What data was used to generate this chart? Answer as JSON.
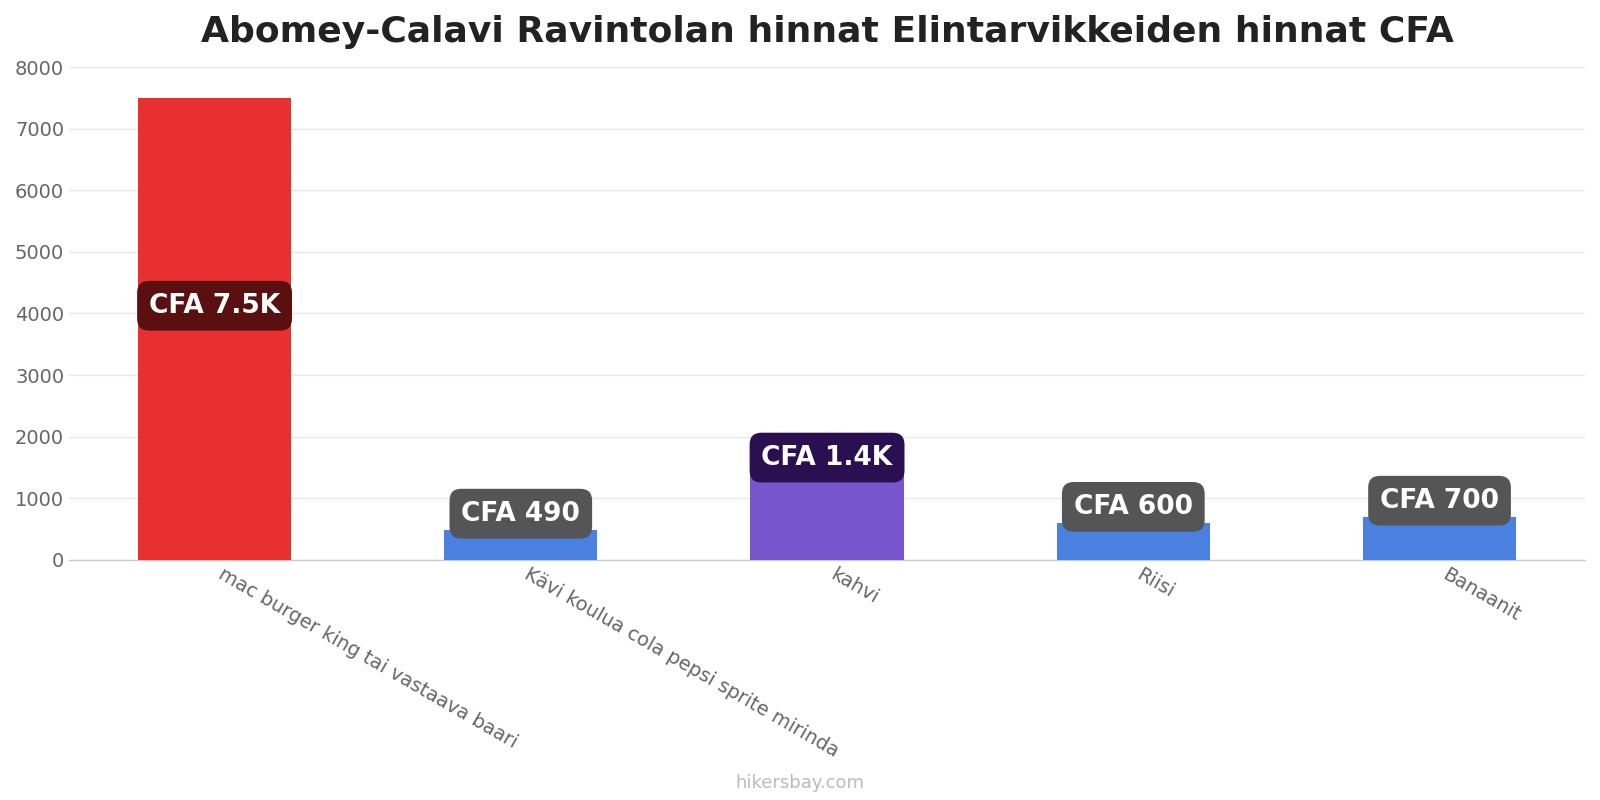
{
  "title": "Abomey-Calavi Ravintolan hinnat Elintarvikkeiden hinnat CFA",
  "categories": [
    "mac burger king tai vastaava baari",
    "Kävi koulua cola pepsi sprite mirinda",
    "kahvi",
    "Riisi",
    "Banaanit"
  ],
  "values": [
    7500,
    490,
    1400,
    600,
    700
  ],
  "bar_colors": [
    "#e83030",
    "#4a80e0",
    "#7755cc",
    "#4a80e0",
    "#4a80e0"
  ],
  "label_texts": [
    "CFA 7.5K",
    "CFA 490",
    "CFA 1.4K",
    "CFA 600",
    "CFA 700"
  ],
  "label_bg_colors": [
    "#5a1010",
    "#555555",
    "#2a1050",
    "#555555",
    "#555555"
  ],
  "ylim": [
    0,
    8000
  ],
  "yticks": [
    0,
    1000,
    2000,
    3000,
    4000,
    5000,
    6000,
    7000,
    8000
  ],
  "watermark": "hikersbay.com",
  "bg_color": "#ffffff",
  "grid_color": "#e8e8e8",
  "label_fontsize": 19,
  "title_fontsize": 26,
  "tick_fontsize": 14,
  "watermark_fontsize": 13,
  "xtick_rotation": -30,
  "bar_width": 0.5
}
